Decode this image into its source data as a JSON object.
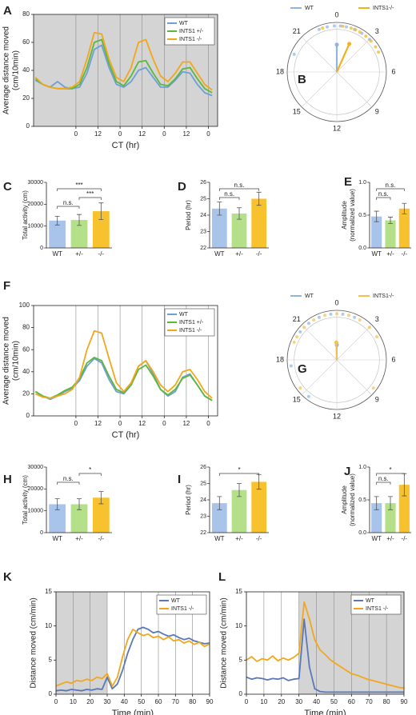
{
  "chart_data": [
    {
      "type": "line",
      "panel": "A",
      "xlabel": "CT (hr)",
      "ylabel": [
        "Average distance moved",
        "(cm/10min)"
      ],
      "xlim": [
        -23,
        77
      ],
      "ylim": [
        0,
        80
      ],
      "yticks": [
        0,
        20,
        40,
        60,
        80
      ],
      "xticks": [
        0,
        12,
        {
          "value": 24,
          "label": "0"
        },
        {
          "value": 36,
          "label": "12"
        },
        {
          "value": 48,
          "label": "0"
        },
        {
          "value": 60,
          "label": "12"
        },
        {
          "value": 72,
          "label": "0"
        }
      ],
      "xgrid": true,
      "shaded": [
        [
          -23,
          77
        ]
      ],
      "legend": "upper right",
      "x": [
        -22,
        -18,
        -14,
        -10,
        -6,
        -2,
        2,
        6,
        10,
        14,
        18,
        22,
        26,
        30,
        34,
        38,
        42,
        46,
        50,
        54,
        58,
        62,
        66,
        70,
        74
      ],
      "series": [
        {
          "name": "WT",
          "color": "#6f9fd8",
          "values": [
            33,
            30,
            28,
            32,
            28,
            27,
            28,
            38,
            55,
            58,
            42,
            30,
            28,
            32,
            40,
            42,
            35,
            28,
            28,
            33,
            39,
            38,
            30,
            24,
            22
          ]
        },
        {
          "name": "INTS1 +/-",
          "color": "#5cb83c",
          "values": [
            34,
            30,
            28,
            27,
            27,
            27,
            30,
            42,
            60,
            62,
            45,
            32,
            29,
            36,
            46,
            47,
            38,
            30,
            29,
            34,
            41,
            42,
            34,
            27,
            24
          ]
        },
        {
          "name": "INTS1 -/-",
          "color": "#f2a71b",
          "values": [
            35,
            30,
            28,
            27,
            27,
            28,
            32,
            48,
            67,
            66,
            48,
            35,
            32,
            42,
            60,
            62,
            48,
            36,
            32,
            38,
            46,
            46,
            38,
            30,
            26
          ]
        }
      ]
    },
    {
      "type": "polar",
      "panel": "B",
      "period": 24,
      "rlim": [
        0,
        1
      ],
      "hour_ticks": [
        0,
        3,
        6,
        9,
        12,
        15,
        18,
        21
      ],
      "series": [
        {
          "name": "WT",
          "color": "#8fb3e3",
          "points": [
            22.5,
            23.2,
            23.8,
            0.3,
            0.8,
            1.5,
            2.2,
            3.0,
            19.5
          ],
          "mean_phase": 0,
          "vector_length": 0.55
        },
        {
          "name": "INTS1-/-",
          "color": "#f2b21b",
          "points": [
            0.5,
            1.2,
            2.0,
            2.6,
            3.2,
            3.8,
            4.3,
            22.8,
            1.6
          ],
          "mean_phase": 1.6,
          "vector_length": 0.62
        }
      ]
    },
    {
      "type": "bar",
      "panel": "C",
      "ylabel": [
        "Total activity (cm)"
      ],
      "categories": [
        "WT",
        "+/-",
        "-/-"
      ],
      "values": [
        12500,
        12800,
        16800
      ],
      "errors": [
        2000,
        2500,
        3800
      ],
      "colors": [
        "#a9c4ea",
        "#b5e08a",
        "#f7c22e"
      ],
      "ylim": [
        0,
        30000
      ],
      "yticks": [
        0,
        10000,
        20000,
        30000
      ],
      "comparisons": [
        {
          "groups": [
            0,
            1
          ],
          "label": "n.s."
        },
        {
          "groups": [
            1,
            2
          ],
          "label": "***"
        },
        {
          "groups": [
            0,
            2
          ],
          "label": "***"
        }
      ]
    },
    {
      "type": "bar",
      "panel": "D",
      "ylabel": [
        "Period (hr)"
      ],
      "categories": [
        "WT",
        "+/-",
        "-/-"
      ],
      "values": [
        24.4,
        24.1,
        25.0
      ],
      "errors": [
        0.4,
        0.35,
        0.4
      ],
      "colors": [
        "#a9c4ea",
        "#b5e08a",
        "#f7c22e"
      ],
      "ylim": [
        22,
        26
      ],
      "yticks": [
        22,
        23,
        24,
        25,
        26
      ],
      "comparisons": [
        {
          "groups": [
            0,
            1
          ],
          "label": "n.s."
        },
        {
          "groups": [
            0,
            2
          ],
          "label": "n.s."
        }
      ]
    },
    {
      "type": "bar",
      "panel": "E",
      "ylabel": [
        "Amplitude",
        "(normalized value)"
      ],
      "categories": [
        "WT",
        "+/-",
        "-/-"
      ],
      "values": [
        0.48,
        0.42,
        0.6
      ],
      "errors": [
        0.08,
        0.05,
        0.08
      ],
      "colors": [
        "#a9c4ea",
        "#b5e08a",
        "#f7c22e"
      ],
      "ylim": [
        0,
        1
      ],
      "yticks": [
        {
          "value": 0,
          "label": "0.0"
        },
        0.5,
        {
          "value": 1,
          "label": "1.0"
        }
      ],
      "comparisons": [
        {
          "groups": [
            0,
            1
          ],
          "label": "n.s."
        },
        {
          "groups": [
            0,
            2
          ],
          "label": "n.s."
        }
      ]
    },
    {
      "type": "line",
      "panel": "F",
      "xlabel": "CT (hr)",
      "ylabel": [
        "Average distance moved",
        "(cm/10min)"
      ],
      "xlim": [
        -23,
        77
      ],
      "ylim": [
        0,
        100
      ],
      "yticks": [
        0,
        20,
        40,
        60,
        80,
        100
      ],
      "xticks": [
        0,
        12,
        {
          "value": 24,
          "label": "0"
        },
        {
          "value": 36,
          "label": "12"
        },
        {
          "value": 48,
          "label": "0"
        },
        {
          "value": 60,
          "label": "12"
        },
        {
          "value": 72,
          "label": "0"
        }
      ],
      "xgrid": true,
      "legend": "upper right",
      "x": [
        -22,
        -18,
        -14,
        -10,
        -6,
        -2,
        2,
        6,
        10,
        14,
        18,
        22,
        26,
        30,
        34,
        38,
        42,
        46,
        50,
        54,
        58,
        62,
        66,
        70,
        74
      ],
      "series": [
        {
          "name": "WT",
          "color": "#6f9fd8",
          "values": [
            22,
            18,
            15,
            18,
            22,
            25,
            32,
            45,
            52,
            48,
            33,
            22,
            20,
            28,
            45,
            50,
            38,
            24,
            18,
            22,
            35,
            38,
            28,
            18,
            14
          ]
        },
        {
          "name": "INTS1 +/-",
          "color": "#5cb83c",
          "values": [
            22,
            18,
            16,
            19,
            23,
            26,
            34,
            48,
            53,
            50,
            36,
            24,
            21,
            28,
            42,
            46,
            36,
            24,
            19,
            24,
            34,
            37,
            28,
            18,
            14
          ]
        },
        {
          "name": "INTS1 -/-",
          "color": "#f2a71b",
          "values": [
            20,
            17,
            16,
            18,
            20,
            24,
            35,
            60,
            77,
            75,
            52,
            30,
            22,
            30,
            45,
            50,
            40,
            28,
            22,
            28,
            40,
            42,
            33,
            22,
            16
          ]
        }
      ]
    },
    {
      "type": "polar",
      "panel": "G",
      "period": 24,
      "rlim": [
        0,
        1
      ],
      "hour_ticks": [
        0,
        3,
        6,
        9,
        12,
        15,
        18,
        21
      ],
      "series": [
        {
          "name": "WT",
          "color": "#8fb3e3",
          "points": [
            20.5,
            21.5,
            22.5,
            23.5,
            0.5,
            1.5,
            14.5,
            17.5
          ],
          "mean_phase": 0,
          "vector_length": 0.3
        },
        {
          "name": "INTS1-/-",
          "color": "#f2c24a",
          "points": [
            20,
            21,
            22,
            23,
            0,
            1,
            2,
            3,
            4,
            8.5,
            15.5,
            19.5
          ],
          "mean_phase": 23.9,
          "vector_length": 0.35
        }
      ]
    },
    {
      "type": "bar",
      "panel": "H",
      "ylabel": [
        "Total activity (cm)"
      ],
      "categories": [
        "WT",
        "+/-",
        "-/-"
      ],
      "values": [
        13000,
        13000,
        16000
      ],
      "errors": [
        2500,
        2500,
        2800
      ],
      "colors": [
        "#a9c4ea",
        "#b5e08a",
        "#f7c22e"
      ],
      "ylim": [
        0,
        30000
      ],
      "yticks": [
        0,
        10000,
        20000,
        30000
      ],
      "comparisons": [
        {
          "groups": [
            0,
            1
          ],
          "label": "n.s."
        },
        {
          "groups": [
            1,
            2
          ],
          "label": "*"
        }
      ]
    },
    {
      "type": "bar",
      "panel": "I",
      "ylabel": [
        "Period (hr)"
      ],
      "categories": [
        "WT",
        "+/-",
        "-/-"
      ],
      "values": [
        23.8,
        24.6,
        25.1
      ],
      "errors": [
        0.4,
        0.4,
        0.45
      ],
      "colors": [
        "#a9c4ea",
        "#b5e08a",
        "#f7c22e"
      ],
      "ylim": [
        22,
        26
      ],
      "yticks": [
        22,
        23,
        24,
        25,
        26
      ],
      "comparisons": [
        {
          "groups": [
            0,
            2
          ],
          "label": "*"
        }
      ]
    },
    {
      "type": "bar",
      "panel": "J",
      "ylabel": [
        "Amplitude",
        "(normalized value)"
      ],
      "categories": [
        "WT",
        "+/-",
        "-/-"
      ],
      "values": [
        0.45,
        0.45,
        0.73
      ],
      "errors": [
        0.1,
        0.1,
        0.17
      ],
      "colors": [
        "#a9c4ea",
        "#b5e08a",
        "#f7c22e"
      ],
      "ylim": [
        0,
        1
      ],
      "yticks": [
        {
          "value": 0,
          "label": "0.0"
        },
        0.5,
        {
          "value": 1,
          "label": "1.0"
        }
      ],
      "comparisons": [
        {
          "groups": [
            0,
            1
          ],
          "label": "n.s."
        },
        {
          "groups": [
            0,
            2
          ],
          "label": "*"
        }
      ]
    },
    {
      "type": "line",
      "panel": "K",
      "xlabel": "Time (min)",
      "ylabel": [
        "Distance moved (cm/min)"
      ],
      "xlim": [
        0,
        90
      ],
      "ylim": [
        0,
        15
      ],
      "yticks": [
        0,
        5,
        10,
        15
      ],
      "xticks": [
        0,
        10,
        20,
        30,
        40,
        50,
        60,
        70,
        80,
        90
      ],
      "xgrid": true,
      "shaded": [
        [
          0,
          30
        ]
      ],
      "legend": "upper right",
      "x": [
        0,
        3,
        6,
        9,
        12,
        15,
        18,
        21,
        24,
        27,
        30,
        33,
        36,
        39,
        42,
        45,
        48,
        51,
        54,
        57,
        60,
        63,
        66,
        69,
        72,
        75,
        78,
        81,
        84,
        87,
        90
      ],
      "series": [
        {
          "name": "WT",
          "color": "#5a78b8",
          "values": [
            0.5,
            0.6,
            0.5,
            0.7,
            0.6,
            0.5,
            0.7,
            0.6,
            0.8,
            0.7,
            2.5,
            0.8,
            1.5,
            3.5,
            6,
            8,
            9.5,
            9.8,
            9.5,
            9,
            9.2,
            8.8,
            8.5,
            8.7,
            8.3,
            8,
            8.2,
            7.8,
            7.6,
            7.4,
            7.5
          ]
        },
        {
          "name": "INTS1 -/-",
          "color": "#f2a71b",
          "values": [
            1.2,
            1.5,
            1.8,
            1.6,
            2,
            1.9,
            2.2,
            2,
            2.5,
            2.3,
            3,
            1.2,
            2.5,
            5.5,
            8,
            9.5,
            9,
            8.6,
            8.8,
            8.3,
            8.5,
            8,
            8.4,
            7.8,
            8,
            7.5,
            7.8,
            7.3,
            7.6,
            7,
            7.4
          ]
        }
      ]
    },
    {
      "type": "line",
      "panel": "L",
      "xlabel": "Time (min)",
      "ylabel": [
        "Distance moved (cm/min)"
      ],
      "xlim": [
        0,
        90
      ],
      "ylim": [
        0,
        15
      ],
      "yticks": [
        0,
        5,
        10,
        15
      ],
      "xticks": [
        0,
        10,
        20,
        30,
        40,
        50,
        60,
        70,
        80,
        90
      ],
      "xgrid": true,
      "shaded": [
        [
          30,
          90
        ]
      ],
      "legend": "upper right",
      "x": [
        0,
        3,
        6,
        9,
        12,
        15,
        18,
        21,
        24,
        27,
        30,
        33,
        36,
        39,
        42,
        45,
        48,
        51,
        54,
        57,
        60,
        63,
        66,
        69,
        72,
        75,
        78,
        81,
        84,
        87,
        90
      ],
      "series": [
        {
          "name": "WT",
          "color": "#5a78b8",
          "values": [
            2.5,
            2.2,
            2.4,
            2.3,
            2.1,
            2.3,
            2.2,
            2.4,
            2,
            2.2,
            2.3,
            11,
            4,
            0.8,
            0.4,
            0.3,
            0.3,
            0.3,
            0.3,
            0.3,
            0.3,
            0.3,
            0.3,
            0.3,
            0.3,
            0.3,
            0.3,
            0.3,
            0.3,
            0.3,
            0.3
          ]
        },
        {
          "name": "INTS1 -/-",
          "color": "#f2a71b",
          "values": [
            5,
            5.5,
            4.8,
            5.2,
            5,
            5.6,
            4.9,
            5.3,
            5,
            5.4,
            6,
            13.5,
            11,
            8,
            6.5,
            5.8,
            5,
            4.5,
            4,
            3.5,
            3,
            2.8,
            2.5,
            2.2,
            2,
            1.8,
            1.6,
            1.4,
            1.2,
            1,
            0.9
          ]
        }
      ]
    }
  ]
}
